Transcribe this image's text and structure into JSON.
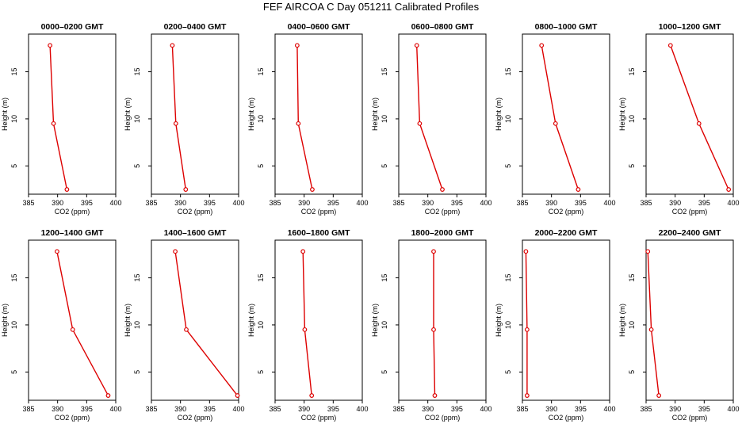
{
  "title": "FEF AIRCOA C  Day 051211  Calibrated Profiles",
  "colors": {
    "series": "#dd0000",
    "axis": "#000000"
  },
  "chart_data": [
    {
      "type": "line",
      "title": "0000–0200 GMT",
      "xlabel": "CO2 (ppm)",
      "ylabel": "Height (m)",
      "xlim": [
        385,
        400
      ],
      "ylim": [
        2,
        19
      ],
      "xticks": [
        "385",
        "390",
        "395",
        "400"
      ],
      "yticks": [
        "5",
        "10",
        "15"
      ],
      "heights": [
        2.5,
        9.5,
        17.8
      ],
      "co2": [
        391.6,
        389.3,
        388.7
      ]
    },
    {
      "type": "line",
      "title": "0200–0400 GMT",
      "xlabel": "CO2 (ppm)",
      "ylabel": "Height (m)",
      "xlim": [
        385,
        400
      ],
      "ylim": [
        2,
        19
      ],
      "xticks": [
        "385",
        "390",
        "395",
        "400"
      ],
      "yticks": [
        "5",
        "10",
        "15"
      ],
      "heights": [
        2.5,
        9.5,
        17.8
      ],
      "co2": [
        390.9,
        389.2,
        388.6
      ]
    },
    {
      "type": "line",
      "title": "0400–0600 GMT",
      "xlabel": "CO2 (ppm)",
      "ylabel": "Height (m)",
      "xlim": [
        385,
        400
      ],
      "ylim": [
        2,
        19
      ],
      "xticks": [
        "385",
        "390",
        "395",
        "400"
      ],
      "yticks": [
        "5",
        "10",
        "15"
      ],
      "heights": [
        2.5,
        9.5,
        17.8
      ],
      "co2": [
        391.4,
        389.0,
        388.8
      ]
    },
    {
      "type": "line",
      "title": "0600–0800 GMT",
      "xlabel": "CO2 (ppm)",
      "ylabel": "Height (m)",
      "xlim": [
        385,
        400
      ],
      "ylim": [
        2,
        19
      ],
      "xticks": [
        "385",
        "390",
        "395",
        "400"
      ],
      "yticks": [
        "5",
        "10",
        "15"
      ],
      "heights": [
        2.5,
        9.5,
        17.8
      ],
      "co2": [
        392.5,
        388.6,
        388.1
      ]
    },
    {
      "type": "line",
      "title": "0800–1000 GMT",
      "xlabel": "CO2 (ppm)",
      "ylabel": "Height (m)",
      "xlim": [
        385,
        400
      ],
      "ylim": [
        2,
        19
      ],
      "xticks": [
        "385",
        "390",
        "395",
        "400"
      ],
      "yticks": [
        "5",
        "10",
        "15"
      ],
      "heights": [
        2.5,
        9.5,
        17.8
      ],
      "co2": [
        394.6,
        390.7,
        388.3
      ]
    },
    {
      "type": "line",
      "title": "1000–1200 GMT",
      "xlabel": "CO2 (ppm)",
      "ylabel": "Height (m)",
      "xlim": [
        385,
        400
      ],
      "ylim": [
        2,
        19
      ],
      "xticks": [
        "385",
        "390",
        "395",
        "400"
      ],
      "yticks": [
        "5",
        "10",
        "15"
      ],
      "heights": [
        2.5,
        9.5,
        17.8
      ],
      "co2": [
        399.2,
        394.1,
        389.2
      ]
    },
    {
      "type": "line",
      "title": "1200–1400 GMT",
      "xlabel": "CO2 (ppm)",
      "ylabel": "Height (m)",
      "xlim": [
        385,
        400
      ],
      "ylim": [
        2,
        19
      ],
      "xticks": [
        "385",
        "390",
        "395",
        "400"
      ],
      "yticks": [
        "5",
        "10",
        "15"
      ],
      "heights": [
        2.5,
        9.5,
        17.8
      ],
      "co2": [
        398.7,
        392.6,
        389.9
      ]
    },
    {
      "type": "line",
      "title": "1400–1600 GMT",
      "xlabel": "CO2 (ppm)",
      "ylabel": "Height (m)",
      "xlim": [
        385,
        400
      ],
      "ylim": [
        2,
        19
      ],
      "xticks": [
        "385",
        "390",
        "395",
        "400"
      ],
      "yticks": [
        "5",
        "10",
        "15"
      ],
      "heights": [
        2.5,
        9.5,
        17.8
      ],
      "co2": [
        399.8,
        391.0,
        389.1
      ]
    },
    {
      "type": "line",
      "title": "1600–1800 GMT",
      "xlabel": "CO2 (ppm)",
      "ylabel": "Height (m)",
      "xlim": [
        385,
        400
      ],
      "ylim": [
        2,
        19
      ],
      "xticks": [
        "385",
        "390",
        "395",
        "400"
      ],
      "yticks": [
        "5",
        "10",
        "15"
      ],
      "heights": [
        2.5,
        9.5,
        17.8
      ],
      "co2": [
        391.3,
        390.1,
        389.8
      ]
    },
    {
      "type": "line",
      "title": "1800–2000 GMT",
      "xlabel": "CO2 (ppm)",
      "ylabel": "Height (m)",
      "xlim": [
        385,
        400
      ],
      "ylim": [
        2,
        19
      ],
      "xticks": [
        "385",
        "390",
        "395",
        "400"
      ],
      "yticks": [
        "5",
        "10",
        "15"
      ],
      "heights": [
        2.5,
        9.5,
        17.8
      ],
      "co2": [
        391.2,
        391.0,
        391.0
      ]
    },
    {
      "type": "line",
      "title": "2000–2200 GMT",
      "xlabel": "CO2 (ppm)",
      "ylabel": "Height (m)",
      "xlim": [
        385,
        400
      ],
      "ylim": [
        2,
        19
      ],
      "xticks": [
        "385",
        "390",
        "395",
        "400"
      ],
      "yticks": [
        "5",
        "10",
        "15"
      ],
      "heights": [
        2.5,
        9.5,
        17.8
      ],
      "co2": [
        385.8,
        385.8,
        385.6
      ]
    },
    {
      "type": "line",
      "title": "2200–2400 GMT",
      "xlabel": "CO2 (ppm)",
      "ylabel": "Height (m)",
      "xlim": [
        385,
        400
      ],
      "ylim": [
        2,
        19
      ],
      "xticks": [
        "385",
        "390",
        "395",
        "400"
      ],
      "yticks": [
        "5",
        "10",
        "15"
      ],
      "heights": [
        2.5,
        9.5,
        17.8
      ],
      "co2": [
        387.2,
        385.9,
        385.3
      ]
    }
  ]
}
